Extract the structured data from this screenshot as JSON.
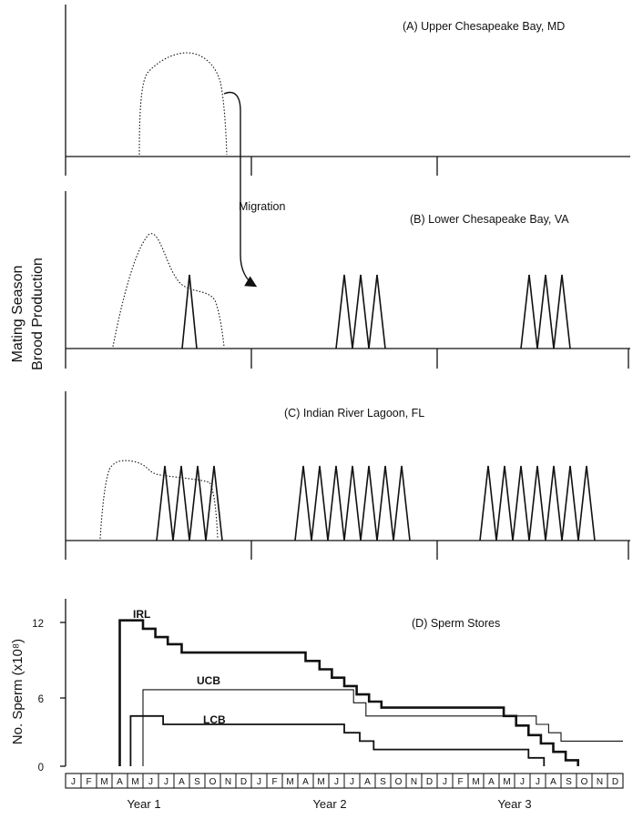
{
  "figure": {
    "ylabel_top_line1": "Mating Season",
    "ylabel_top_line2": "Brood Production",
    "annotation": "Migration",
    "colors": {
      "ink": "#111111",
      "background": "#ffffff"
    }
  },
  "chart_data": [
    {
      "type": "line",
      "panel": "A",
      "title": "(A) Upper Chesapeake Bay, MD",
      "year_divisions": 3,
      "mating_season": {
        "style": "dotted",
        "start_month": 5.4,
        "end_month": 10.1,
        "peak_month": 7.3,
        "relative_height": 0.83
      },
      "brood_peaks_per_year": [
        0,
        0,
        0
      ]
    },
    {
      "type": "line",
      "panel": "B",
      "title": "(B) Lower Chesapeake Bay, VA",
      "year_divisions": 3,
      "mating_season": {
        "style": "dotted",
        "start_month": 4.6,
        "end_month": 10.3,
        "peak_month": 5.4,
        "relative_height": 1.0
      },
      "brood_peaks_per_year": [
        1,
        3,
        3
      ],
      "brood_peak_relative_height": 0.62
    },
    {
      "type": "line",
      "panel": "C",
      "title": "(C) Indian River Lagoon, FL",
      "year_divisions": 3,
      "mating_season": {
        "style": "dotted",
        "start_month": 3.5,
        "end_month": 10.0,
        "peak_month": 4.6,
        "relative_height": 0.96
      },
      "brood_peaks_per_year": [
        4,
        7,
        7
      ],
      "brood_peak_relative_height": 0.85
    },
    {
      "type": "line",
      "panel": "D",
      "title": "(D) Sperm Stores",
      "ylabel": "No. Sperm (x10⁸)",
      "yticks": [
        "12",
        "6",
        "0"
      ],
      "ylim": [
        0,
        14
      ],
      "month_labels": [
        "J",
        "F",
        "M",
        "A",
        "M",
        "J",
        "J",
        "A",
        "S",
        "O",
        "N",
        "D",
        "J",
        "F",
        "M",
        "A",
        "M",
        "J",
        "J",
        "A",
        "S",
        "O",
        "N",
        "D",
        "J",
        "F",
        "M",
        "A",
        "M",
        "J",
        "J",
        "A",
        "S",
        "O",
        "N",
        "D"
      ],
      "year_labels": [
        "Year 1",
        "Year 2",
        "Year 3"
      ],
      "x_unit": "months since start of Year 1",
      "series": [
        {
          "name": "IRL",
          "style": "thick",
          "steps": [
            [
              3.5,
              0
            ],
            [
              3.5,
              12.2
            ],
            [
              5.0,
              12.2
            ],
            [
              5.0,
              11.5
            ],
            [
              5.8,
              11.5
            ],
            [
              5.8,
              10.8
            ],
            [
              6.6,
              10.8
            ],
            [
              6.6,
              10.2
            ],
            [
              7.5,
              10.2
            ],
            [
              7.5,
              9.5
            ],
            [
              15.5,
              9.5
            ],
            [
              15.5,
              8.8
            ],
            [
              16.4,
              8.8
            ],
            [
              16.4,
              8.1
            ],
            [
              17.2,
              8.1
            ],
            [
              17.2,
              7.4
            ],
            [
              18.0,
              7.4
            ],
            [
              18.0,
              6.7
            ],
            [
              18.8,
              6.7
            ],
            [
              18.8,
              6.0
            ],
            [
              19.6,
              6.0
            ],
            [
              19.6,
              5.4
            ],
            [
              20.4,
              5.4
            ],
            [
              20.4,
              4.9
            ],
            [
              28.3,
              4.9
            ],
            [
              28.3,
              4.2
            ],
            [
              29.1,
              4.2
            ],
            [
              29.1,
              3.4
            ],
            [
              29.9,
              3.4
            ],
            [
              29.9,
              2.6
            ],
            [
              30.7,
              2.6
            ],
            [
              30.7,
              1.9
            ],
            [
              31.5,
              1.9
            ],
            [
              31.5,
              1.2
            ],
            [
              32.3,
              1.2
            ],
            [
              32.3,
              0.5
            ],
            [
              33.1,
              0.5
            ],
            [
              33.1,
              0
            ]
          ]
        },
        {
          "name": "UCB",
          "style": "thin",
          "steps": [
            [
              5.0,
              0
            ],
            [
              5.0,
              6.4
            ],
            [
              18.6,
              6.4
            ],
            [
              18.6,
              5.3
            ],
            [
              19.4,
              5.3
            ],
            [
              19.4,
              4.2
            ],
            [
              30.4,
              4.2
            ],
            [
              30.4,
              3.5
            ],
            [
              31.2,
              3.5
            ],
            [
              31.2,
              2.8
            ],
            [
              32.0,
              2.8
            ],
            [
              32.0,
              2.1
            ],
            [
              36.0,
              2.1
            ]
          ]
        },
        {
          "name": "LCB",
          "style": "medium",
          "steps": [
            [
              4.2,
              0
            ],
            [
              4.2,
              4.2
            ],
            [
              6.3,
              4.2
            ],
            [
              6.3,
              3.5
            ],
            [
              18.0,
              3.5
            ],
            [
              18.0,
              2.8
            ],
            [
              19.0,
              2.8
            ],
            [
              19.0,
              2.1
            ],
            [
              19.9,
              2.1
            ],
            [
              19.9,
              1.4
            ],
            [
              29.9,
              1.4
            ],
            [
              29.9,
              0.7
            ],
            [
              30.9,
              0.7
            ],
            [
              30.9,
              0
            ]
          ]
        }
      ]
    }
  ]
}
